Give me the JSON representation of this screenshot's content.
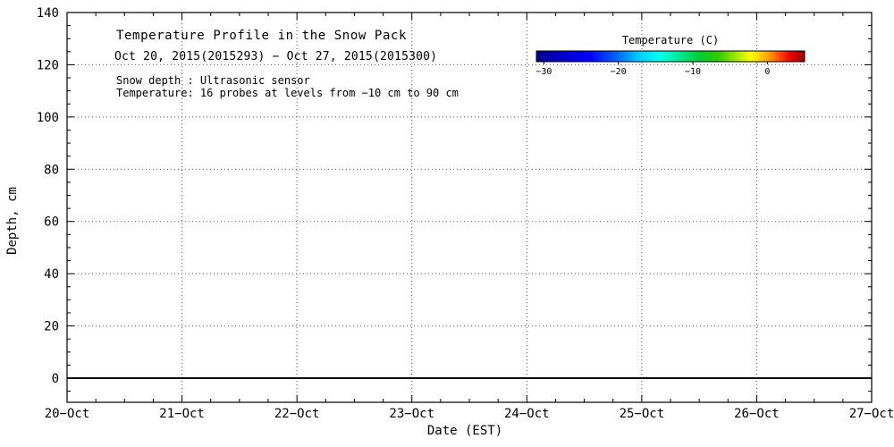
{
  "chart_data": {
    "type": "heatmap",
    "title": "Temperature Profile in the Snow Pack",
    "subtitle": "Oct 20, 2015(2015293) − Oct 27, 2015(2015300)",
    "annotations": [
      "Snow depth : Ultrasonic sensor",
      "Temperature: 16 probes at levels from −10 cm to 90 cm"
    ],
    "xlabel": "Date (EST)",
    "ylabel": "Depth, cm",
    "x_ticks": [
      "20−Oct",
      "21−Oct",
      "22−Oct",
      "23−Oct",
      "24−Oct",
      "25−Oct",
      "26−Oct",
      "27−Oct"
    ],
    "y_ticks": [
      0,
      20,
      40,
      60,
      80,
      100,
      120,
      140
    ],
    "ylim": [
      -10,
      140
    ],
    "grid": "dotted",
    "zero_line": 0,
    "series": [],
    "colorbar": {
      "label": "Temperature (C)",
      "ticks": [
        "−30",
        "−20",
        "−10",
        "0"
      ],
      "tick_values": [
        -30,
        -20,
        -10,
        0
      ],
      "range": [
        -31,
        5
      ],
      "gradient": [
        {
          "offset": 0,
          "color": "#00008B"
        },
        {
          "offset": 10,
          "color": "#0000CD"
        },
        {
          "offset": 20,
          "color": "#0000FF"
        },
        {
          "offset": 30,
          "color": "#0066FF"
        },
        {
          "offset": 38,
          "color": "#00CCFF"
        },
        {
          "offset": 46,
          "color": "#00FFEE"
        },
        {
          "offset": 54,
          "color": "#00E68C"
        },
        {
          "offset": 61,
          "color": "#00CC33"
        },
        {
          "offset": 68,
          "color": "#33CC00"
        },
        {
          "offset": 74,
          "color": "#99E600"
        },
        {
          "offset": 80,
          "color": "#FFFF00"
        },
        {
          "offset": 86,
          "color": "#FFAA00"
        },
        {
          "offset": 91,
          "color": "#FF4400"
        },
        {
          "offset": 95,
          "color": "#E60000"
        },
        {
          "offset": 100,
          "color": "#990000"
        }
      ]
    }
  }
}
